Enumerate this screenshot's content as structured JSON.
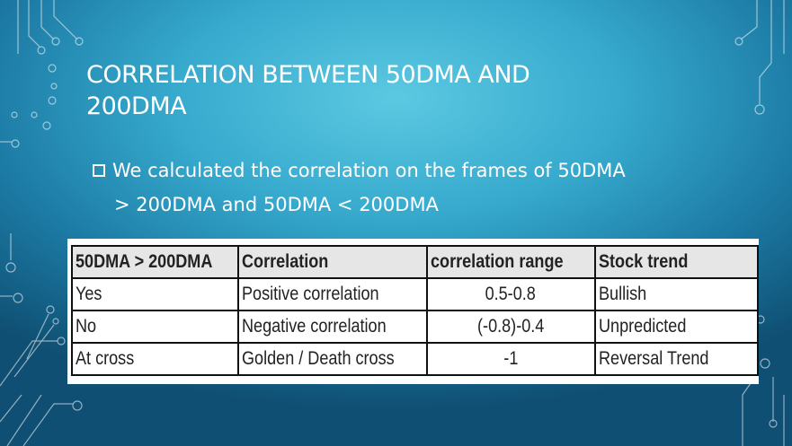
{
  "slide": {
    "title_line1": "CORRELATION BETWEEN 50DMA AND",
    "title_line2": "200DMA",
    "bullet_line1": "We calculated the correlation on the frames of 50DMA",
    "bullet_line2": ">  200DMA and 50DMA < 200DMA",
    "bullet_icon": "hollow-square-bullet"
  },
  "table": {
    "headers": [
      "50DMA > 200DMA",
      "Correlation",
      "correlation range",
      "Stock trend"
    ],
    "rows": [
      [
        "Yes",
        "Positive correlation",
        "0.5-0.8",
        "Bullish"
      ],
      [
        "No",
        "Negative correlation",
        "(-0.8)-0.4",
        "Unpredicted"
      ],
      [
        "At cross",
        "Golden / Death cross",
        "-1",
        "Reversal Trend"
      ]
    ]
  },
  "theme": {
    "background_light": "#5cc9e2",
    "background_dark": "#0f4f73",
    "text_color": "#ffffff",
    "header_fill": "#e6e6e6"
  }
}
